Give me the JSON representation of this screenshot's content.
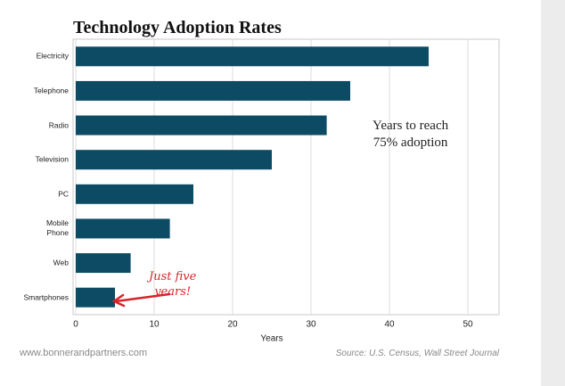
{
  "chart_data": {
    "type": "bar",
    "orientation": "horizontal",
    "title": "Technology Adoption Rates",
    "categories": [
      "Electricity",
      "Telephone",
      "Radio",
      "Television",
      "PC",
      "Mobile\nPhone",
      "Web",
      "Smartphones"
    ],
    "values": [
      45,
      35,
      32,
      25,
      15,
      12,
      7,
      5
    ],
    "color": "#0d4a63",
    "xlabel": "Years",
    "xlim": [
      0,
      54
    ],
    "xticks": [
      0,
      10,
      20,
      30,
      40,
      50
    ],
    "grid": true,
    "annotations": [
      "Years to reach\n75% adoption",
      "Just five\nyears!"
    ],
    "footer": "www.bonnerandpartners.com",
    "source": "Source: U.S. Census, Wall Street Journal"
  }
}
